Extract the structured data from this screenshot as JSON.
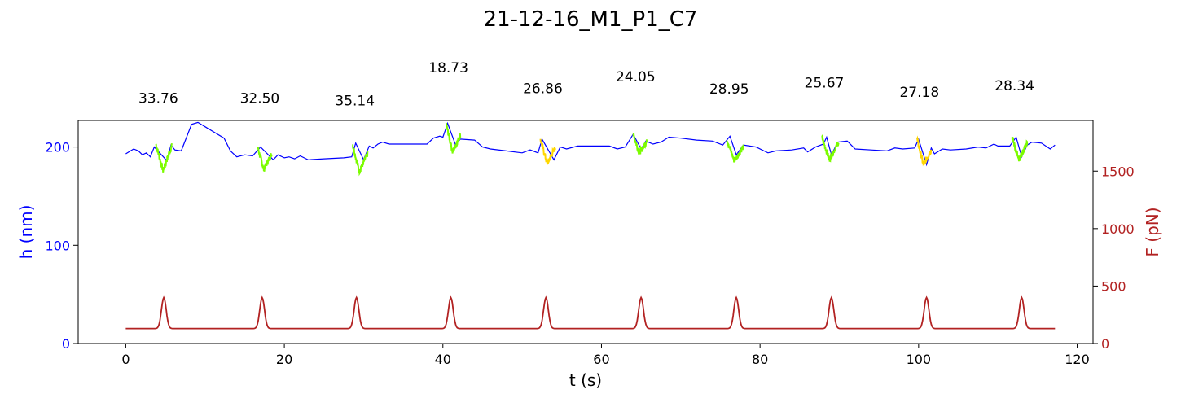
{
  "chart_data": {
    "type": "line",
    "title": "21-12-16_M1_P1_C7",
    "xlabel": "t (s)",
    "ylabel_left": "h (nm)",
    "ylabel_right": "F (pN)",
    "xlim": [
      -6,
      122
    ],
    "ylim_left": [
      0,
      227
    ],
    "ylim_right": [
      0,
      1941
    ],
    "x_ticks": [
      0,
      20,
      40,
      60,
      80,
      100,
      120
    ],
    "y_left_ticks": [
      0,
      100,
      200
    ],
    "y_right_ticks": [
      0,
      500,
      1000,
      1500
    ],
    "colors": {
      "h": "#0000ff",
      "force": "#b22222",
      "segment_green": "#7cfc00",
      "segment_gold": "#ffd700",
      "left_axis": "#0000ff",
      "right_axis": "#b22222"
    },
    "series": [
      {
        "key": "h",
        "axis": "left",
        "points": [
          [
            0,
            193
          ],
          [
            0.6,
            196
          ],
          [
            1.0,
            198
          ],
          [
            1.6,
            196
          ],
          [
            2.1,
            192
          ],
          [
            2.6,
            194
          ],
          [
            3.1,
            190
          ],
          [
            3.6,
            200
          ],
          [
            5.2,
            186
          ],
          [
            5.7,
            202
          ],
          [
            6.2,
            197
          ],
          [
            7.0,
            196
          ],
          [
            8.3,
            223
          ],
          [
            9.1,
            225
          ],
          [
            12.4,
            209
          ],
          [
            13.2,
            196
          ],
          [
            14.0,
            190
          ],
          [
            15.0,
            192
          ],
          [
            16.0,
            191
          ],
          [
            17.0,
            200
          ],
          [
            18.6,
            187
          ],
          [
            19.2,
            192
          ],
          [
            20.0,
            189
          ],
          [
            20.6,
            190
          ],
          [
            21.3,
            188
          ],
          [
            22.0,
            191
          ],
          [
            23.0,
            187
          ],
          [
            25.0,
            188
          ],
          [
            27.5,
            189
          ],
          [
            28.5,
            190
          ],
          [
            29.0,
            204
          ],
          [
            30.0,
            187
          ],
          [
            30.7,
            201
          ],
          [
            31.2,
            199
          ],
          [
            31.8,
            203
          ],
          [
            32.4,
            205
          ],
          [
            33.2,
            203
          ],
          [
            34.5,
            203
          ],
          [
            36.0,
            203
          ],
          [
            38.0,
            203
          ],
          [
            38.8,
            209
          ],
          [
            39.6,
            211
          ],
          [
            40.0,
            210
          ],
          [
            40.6,
            224
          ],
          [
            41.6,
            202
          ],
          [
            42.2,
            208
          ],
          [
            44.0,
            207
          ],
          [
            45.0,
            200
          ],
          [
            46.0,
            198
          ],
          [
            48.0,
            196
          ],
          [
            50.0,
            194
          ],
          [
            51.0,
            197
          ],
          [
            52.0,
            194
          ],
          [
            52.5,
            208
          ],
          [
            54.0,
            187
          ],
          [
            54.8,
            200
          ],
          [
            55.6,
            198
          ],
          [
            57.0,
            201
          ],
          [
            59.0,
            201
          ],
          [
            61.0,
            201
          ],
          [
            62.0,
            198
          ],
          [
            63.0,
            200
          ],
          [
            64.0,
            213
          ],
          [
            65.0,
            198
          ],
          [
            65.6,
            206
          ],
          [
            66.5,
            203
          ],
          [
            67.5,
            205
          ],
          [
            68.5,
            210
          ],
          [
            70.0,
            209
          ],
          [
            72.0,
            207
          ],
          [
            74.0,
            206
          ],
          [
            75.3,
            202
          ],
          [
            76.2,
            211
          ],
          [
            77.0,
            192
          ],
          [
            77.9,
            202
          ],
          [
            79.5,
            200
          ],
          [
            81.0,
            194
          ],
          [
            82.0,
            196
          ],
          [
            84.0,
            197
          ],
          [
            85.5,
            199
          ],
          [
            86.0,
            195
          ],
          [
            87.0,
            200
          ],
          [
            88.0,
            203
          ],
          [
            88.4,
            210
          ],
          [
            89.0,
            192
          ],
          [
            89.8,
            205
          ],
          [
            91.0,
            206
          ],
          [
            92.0,
            198
          ],
          [
            94.0,
            197
          ],
          [
            96.0,
            196
          ],
          [
            97.0,
            199
          ],
          [
            98.0,
            198
          ],
          [
            99.5,
            199
          ],
          [
            100.0,
            208
          ],
          [
            101.0,
            182
          ],
          [
            101.6,
            199
          ],
          [
            102.0,
            193
          ],
          [
            103.0,
            198
          ],
          [
            104.0,
            197
          ],
          [
            106.0,
            198
          ],
          [
            107.5,
            200
          ],
          [
            108.5,
            199
          ],
          [
            109.5,
            203
          ],
          [
            110.0,
            201
          ],
          [
            111.5,
            201
          ],
          [
            112.3,
            210
          ],
          [
            113.0,
            190
          ],
          [
            113.7,
            202
          ],
          [
            114.3,
            205
          ],
          [
            115.5,
            204
          ],
          [
            116.6,
            198
          ],
          [
            117.2,
            202
          ]
        ]
      },
      {
        "key": "force",
        "axis": "right",
        "baseline": 130,
        "peak": 400,
        "peak_times": [
          4.8,
          17.2,
          29.1,
          41.0,
          53.0,
          65.0,
          77.0,
          89.0,
          101.0,
          113.0
        ],
        "t_range": [
          0,
          117.2
        ]
      }
    ],
    "segments": [
      {
        "color": "green",
        "t0": 3.8,
        "t1": 5.8,
        "start": 203,
        "min": 176,
        "end": 201,
        "annotation": "33.76",
        "label_y": 1.1
      },
      {
        "color": "green",
        "t0": 16.6,
        "t1": 18.4,
        "start": 201,
        "min": 177,
        "end": 193,
        "annotation": "32.50",
        "label_y": 1.1
      },
      {
        "color": "green",
        "t0": 28.6,
        "t1": 30.5,
        "start": 203,
        "min": 175,
        "end": 193,
        "annotation": "35.14",
        "label_y": 1.09
      },
      {
        "color": "green",
        "t0": 40.4,
        "t1": 42.2,
        "start": 224,
        "min": 195,
        "end": 212,
        "annotation": "18.73",
        "label_y": 1.237
      },
      {
        "color": "gold",
        "t0": 52.3,
        "t1": 54.2,
        "start": 208,
        "min": 183,
        "end": 200,
        "annotation": "26.86",
        "label_y": 1.145
      },
      {
        "color": "green",
        "t0": 64.0,
        "t1": 65.7,
        "start": 213,
        "min": 194,
        "end": 205,
        "annotation": "24.05",
        "label_y": 1.197
      },
      {
        "color": "green",
        "t0": 75.8,
        "t1": 77.9,
        "start": 208,
        "min": 186,
        "end": 200,
        "annotation": "28.95",
        "label_y": 1.142
      },
      {
        "color": "green",
        "t0": 87.8,
        "t1": 89.9,
        "start": 210,
        "min": 187,
        "end": 205,
        "annotation": "25.67",
        "label_y": 1.17
      },
      {
        "color": "gold",
        "t0": 99.8,
        "t1": 101.6,
        "start": 208,
        "min": 182,
        "end": 197,
        "annotation": "27.18",
        "label_y": 1.128
      },
      {
        "color": "green",
        "t0": 111.8,
        "t1": 113.7,
        "start": 210,
        "min": 186,
        "end": 205,
        "annotation": "28.34",
        "label_y": 1.157
      }
    ]
  }
}
